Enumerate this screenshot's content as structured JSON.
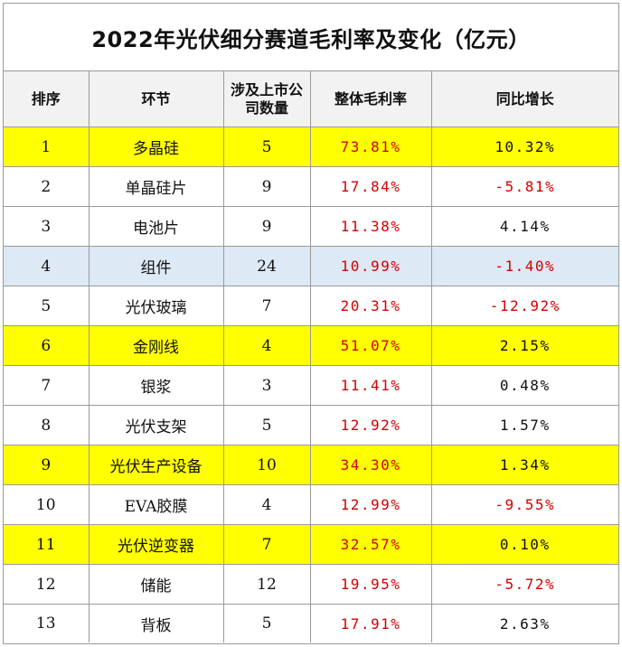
{
  "title": "2022年光伏细分赛道毛利率及变化（亿元）",
  "colors": {
    "highlight_yellow": "#ffff00",
    "highlight_blue": "#dde9f4",
    "negative_red": "#d40000"
  },
  "headers": {
    "rank": "排序",
    "segment": "环节",
    "companies": "涉及上市公司数量",
    "gross_margin": "整体毛利率",
    "yoy": "同比增长"
  },
  "rows": [
    {
      "rank": "1",
      "segment": "多晶硅",
      "companies": "5",
      "gross_margin": "73.81%",
      "yoy": "10.32%",
      "highlight": "yellow"
    },
    {
      "rank": "2",
      "segment": "单晶硅片",
      "companies": "9",
      "gross_margin": "17.84%",
      "yoy": "-5.81%",
      "highlight": "none"
    },
    {
      "rank": "3",
      "segment": "电池片",
      "companies": "9",
      "gross_margin": "11.38%",
      "yoy": "4.14%",
      "highlight": "none"
    },
    {
      "rank": "4",
      "segment": "组件",
      "companies": "24",
      "gross_margin": "10.99%",
      "yoy": "-1.40%",
      "highlight": "blue"
    },
    {
      "rank": "5",
      "segment": "光伏玻璃",
      "companies": "7",
      "gross_margin": "20.31%",
      "yoy": "-12.92%",
      "highlight": "none"
    },
    {
      "rank": "6",
      "segment": "金刚线",
      "companies": "4",
      "gross_margin": "51.07%",
      "yoy": "2.15%",
      "highlight": "yellow"
    },
    {
      "rank": "7",
      "segment": "银浆",
      "companies": "3",
      "gross_margin": "11.41%",
      "yoy": "0.48%",
      "highlight": "none"
    },
    {
      "rank": "8",
      "segment": "光伏支架",
      "companies": "5",
      "gross_margin": "12.92%",
      "yoy": "1.57%",
      "highlight": "none"
    },
    {
      "rank": "9",
      "segment": "光伏生产设备",
      "companies": "10",
      "gross_margin": "34.30%",
      "yoy": "1.34%",
      "highlight": "yellow"
    },
    {
      "rank": "10",
      "segment": "EVA胶膜",
      "companies": "4",
      "gross_margin": "12.99%",
      "yoy": "-9.55%",
      "highlight": "none"
    },
    {
      "rank": "11",
      "segment": "光伏逆变器",
      "companies": "7",
      "gross_margin": "32.57%",
      "yoy": "0.10%",
      "highlight": "yellow"
    },
    {
      "rank": "12",
      "segment": "储能",
      "companies": "12",
      "gross_margin": "19.95%",
      "yoy": "-5.72%",
      "highlight": "none"
    },
    {
      "rank": "13",
      "segment": "背板",
      "companies": "5",
      "gross_margin": "17.91%",
      "yoy": "2.63%",
      "highlight": "none"
    }
  ]
}
